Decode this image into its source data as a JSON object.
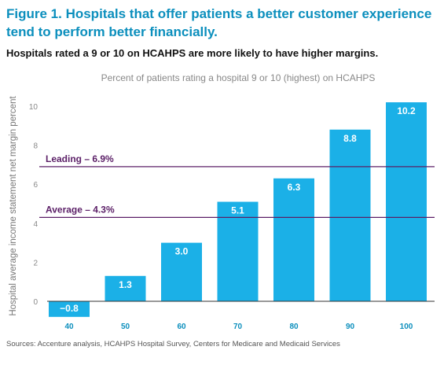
{
  "figure_title": "Figure 1. Hospitals that offer patients a better customer experience tend to perform better financially.",
  "subtitle": "Hospitals rated a 9 or 10 on HCAHPS are more likely to have higher margins.",
  "source": "Sources: Accenture analysis, HCAHPS Hospital Survey, Centers for Medicare and Medicaid Services",
  "colors": {
    "bar": "#1bb0e7",
    "reference_line": "#5b1f67",
    "title": "#0c8fbd"
  },
  "chart_data": {
    "type": "bar",
    "title": "Percent of patients rating a hospital 9 or 10 (highest) on HCAHPS",
    "xlabel": "",
    "ylabel": "Hospital average income statement net margin percent",
    "categories": [
      "40",
      "50",
      "60",
      "70",
      "80",
      "90",
      "100"
    ],
    "values": [
      -0.8,
      1.3,
      3.0,
      5.1,
      6.3,
      8.8,
      10.2
    ],
    "data_labels": [
      "−0.8",
      "1.3",
      "3.0",
      "5.1",
      "6.3",
      "8.8",
      "10.2"
    ],
    "ylim": [
      -1,
      10.5
    ],
    "yticks": [
      0,
      2,
      4,
      6,
      8,
      10
    ],
    "grid": false,
    "reference_lines": [
      {
        "label": "Leading – 6.9%",
        "value": 6.9
      },
      {
        "label": "Average – 4.3%",
        "value": 4.3
      }
    ]
  }
}
